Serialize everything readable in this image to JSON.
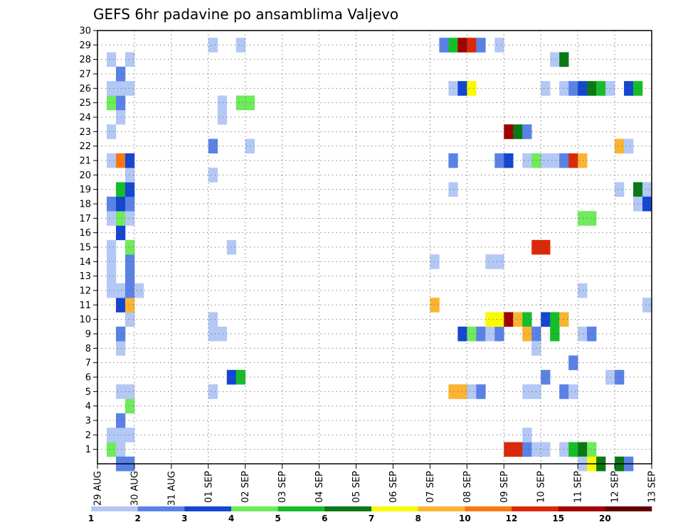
{
  "chart_data": {
    "type": "heatmap",
    "title": "GEFS 6hr padavine po ansamblima Valjevo",
    "y_ticks": [
      "1",
      "2",
      "3",
      "4",
      "5",
      "6",
      "7",
      "8",
      "9",
      "10",
      "11",
      "12",
      "13",
      "14",
      "15",
      "16",
      "17",
      "18",
      "19",
      "20",
      "21",
      "22",
      "23",
      "24",
      "25",
      "26",
      "27",
      "28",
      "29",
      "30"
    ],
    "x_ticks": [
      "29 AUG",
      "30 AUG",
      "31 AUG",
      "01 SEP",
      "02 SEP",
      "03 SEP",
      "04 SEP",
      "05 SEP",
      "06 SEP",
      "07 SEP",
      "08 SEP",
      "09 SEP",
      "10 SEP",
      "11 SEP",
      "12 SEP",
      "13 SEP"
    ],
    "x_steps_per_day": 4,
    "y_range": [
      0,
      30
    ],
    "grid": true,
    "colorbar": {
      "labels": [
        "1",
        "2",
        "3",
        "4",
        "5",
        "6",
        "7",
        "8",
        "10",
        "12",
        "15",
        "20"
      ],
      "colors": [
        "#b4c8f5",
        "#5a82e6",
        "#1446d2",
        "#6eeb5a",
        "#14be28",
        "#0a7814",
        "#fafa00",
        "#fab432",
        "#fa7814",
        "#dc280a",
        "#a00000",
        "#640000"
      ]
    },
    "cells": [
      {
        "x": 0.25,
        "y": 1,
        "c": 3
      },
      {
        "x": 0.5,
        "y": 1,
        "c": 0
      },
      {
        "x": 0.25,
        "y": 2,
        "c": 0
      },
      {
        "x": 0.5,
        "y": 2,
        "c": 0
      },
      {
        "x": 0.75,
        "y": 2,
        "c": 0
      },
      {
        "x": 0.5,
        "y": 3,
        "c": 1
      },
      {
        "x": 0.75,
        "y": 4,
        "c": 3
      },
      {
        "x": 0.5,
        "y": 5,
        "c": 0
      },
      {
        "x": 0.75,
        "y": 5,
        "c": 0
      },
      {
        "x": 0.5,
        "y": 8,
        "c": 0
      },
      {
        "x": 0.5,
        "y": 9,
        "c": 1
      },
      {
        "x": 0.75,
        "y": 10,
        "c": 0
      },
      {
        "x": 0.5,
        "y": 11,
        "c": 2
      },
      {
        "x": 0.75,
        "y": 11,
        "c": 7
      },
      {
        "x": 0.25,
        "y": 12,
        "c": 0
      },
      {
        "x": 0.5,
        "y": 12,
        "c": 0
      },
      {
        "x": 0.75,
        "y": 12,
        "c": 1
      },
      {
        "x": 1.0,
        "y": 12,
        "c": 0
      },
      {
        "x": 0.25,
        "y": 13,
        "c": 0
      },
      {
        "x": 0.75,
        "y": 13,
        "c": 1
      },
      {
        "x": 0.25,
        "y": 14,
        "c": 0
      },
      {
        "x": 0.75,
        "y": 14,
        "c": 1
      },
      {
        "x": 0.25,
        "y": 15,
        "c": 0
      },
      {
        "x": 0.75,
        "y": 15,
        "c": 3
      },
      {
        "x": 0.5,
        "y": 16,
        "c": 2
      },
      {
        "x": 0.25,
        "y": 17,
        "c": 0
      },
      {
        "x": 0.5,
        "y": 17,
        "c": 3
      },
      {
        "x": 0.75,
        "y": 17,
        "c": 0
      },
      {
        "x": 0.25,
        "y": 18,
        "c": 1
      },
      {
        "x": 0.5,
        "y": 18,
        "c": 2
      },
      {
        "x": 0.75,
        "y": 18,
        "c": 1
      },
      {
        "x": 0.5,
        "y": 19,
        "c": 4
      },
      {
        "x": 0.75,
        "y": 19,
        "c": 2
      },
      {
        "x": 0.75,
        "y": 20,
        "c": 0
      },
      {
        "x": 0.25,
        "y": 21,
        "c": 0
      },
      {
        "x": 0.5,
        "y": 21,
        "c": 8
      },
      {
        "x": 0.75,
        "y": 21,
        "c": 2
      },
      {
        "x": 0.25,
        "y": 23,
        "c": 0
      },
      {
        "x": 0.5,
        "y": 24,
        "c": 0
      },
      {
        "x": 0.25,
        "y": 25,
        "c": 3
      },
      {
        "x": 0.5,
        "y": 25,
        "c": 1
      },
      {
        "x": 0.25,
        "y": 26,
        "c": 0
      },
      {
        "x": 0.5,
        "y": 26,
        "c": 0
      },
      {
        "x": 0.75,
        "y": 26,
        "c": 0
      },
      {
        "x": 0.5,
        "y": 27,
        "c": 1
      },
      {
        "x": 0.25,
        "y": 28,
        "c": 0
      },
      {
        "x": 0.75,
        "y": 28,
        "c": 0
      },
      {
        "x": 0.5,
        "y": 0,
        "c": 1
      },
      {
        "x": 0.75,
        "y": 0,
        "c": 1
      },
      {
        "x": 3.0,
        "y": 5,
        "c": 0
      },
      {
        "x": 3.0,
        "y": 9,
        "c": 0
      },
      {
        "x": 3.25,
        "y": 9,
        "c": 0
      },
      {
        "x": 3.0,
        "y": 10,
        "c": 0
      },
      {
        "x": 3.0,
        "y": 20,
        "c": 0
      },
      {
        "x": 3.0,
        "y": 22,
        "c": 1
      },
      {
        "x": 3.0,
        "y": 29,
        "c": 0
      },
      {
        "x": 3.25,
        "y": 24,
        "c": 0
      },
      {
        "x": 3.25,
        "y": 25,
        "c": 0
      },
      {
        "x": 3.5,
        "y": 6,
        "c": 2
      },
      {
        "x": 3.75,
        "y": 6,
        "c": 4
      },
      {
        "x": 3.5,
        "y": 15,
        "c": 0
      },
      {
        "x": 3.75,
        "y": 25,
        "c": 3
      },
      {
        "x": 4.0,
        "y": 25,
        "c": 3
      },
      {
        "x": 4.0,
        "y": 22,
        "c": 0
      },
      {
        "x": 3.75,
        "y": 29,
        "c": 0
      },
      {
        "x": 9.0,
        "y": 11,
        "c": 7
      },
      {
        "x": 9.0,
        "y": 14,
        "c": 0
      },
      {
        "x": 9.25,
        "y": 29,
        "c": 1
      },
      {
        "x": 9.5,
        "y": 29,
        "c": 4
      },
      {
        "x": 9.75,
        "y": 29,
        "c": 10
      },
      {
        "x": 10.0,
        "y": 29,
        "c": 9
      },
      {
        "x": 10.25,
        "y": 29,
        "c": 1
      },
      {
        "x": 10.75,
        "y": 29,
        "c": 0
      },
      {
        "x": 9.5,
        "y": 26,
        "c": 0
      },
      {
        "x": 9.75,
        "y": 26,
        "c": 2
      },
      {
        "x": 10.0,
        "y": 26,
        "c": 6
      },
      {
        "x": 9.5,
        "y": 21,
        "c": 1
      },
      {
        "x": 9.5,
        "y": 19,
        "c": 0
      },
      {
        "x": 9.5,
        "y": 5,
        "c": 7
      },
      {
        "x": 9.75,
        "y": 5,
        "c": 7
      },
      {
        "x": 10.0,
        "y": 5,
        "c": 0
      },
      {
        "x": 10.25,
        "y": 5,
        "c": 1
      },
      {
        "x": 9.75,
        "y": 9,
        "c": 2
      },
      {
        "x": 10.0,
        "y": 9,
        "c": 3
      },
      {
        "x": 10.25,
        "y": 9,
        "c": 1
      },
      {
        "x": 10.5,
        "y": 9,
        "c": 0
      },
      {
        "x": 10.75,
        "y": 9,
        "c": 1
      },
      {
        "x": 10.5,
        "y": 10,
        "c": 6
      },
      {
        "x": 10.75,
        "y": 10,
        "c": 6
      },
      {
        "x": 11.0,
        "y": 10,
        "c": 10
      },
      {
        "x": 11.25,
        "y": 10,
        "c": 7
      },
      {
        "x": 11.5,
        "y": 10,
        "c": 4
      },
      {
        "x": 10.5,
        "y": 14,
        "c": 0
      },
      {
        "x": 10.75,
        "y": 14,
        "c": 0
      },
      {
        "x": 10.75,
        "y": 21,
        "c": 1
      },
      {
        "x": 11.0,
        "y": 21,
        "c": 2
      },
      {
        "x": 11.0,
        "y": 1,
        "c": 9
      },
      {
        "x": 11.25,
        "y": 1,
        "c": 9
      },
      {
        "x": 11.5,
        "y": 1,
        "c": 1
      },
      {
        "x": 11.75,
        "y": 1,
        "c": 0
      },
      {
        "x": 12.0,
        "y": 1,
        "c": 0
      },
      {
        "x": 11.0,
        "y": 23,
        "c": 10
      },
      {
        "x": 11.25,
        "y": 23,
        "c": 5
      },
      {
        "x": 11.5,
        "y": 23,
        "c": 1
      },
      {
        "x": 11.5,
        "y": 2,
        "c": 0
      },
      {
        "x": 11.5,
        "y": 5,
        "c": 0
      },
      {
        "x": 11.75,
        "y": 5,
        "c": 0
      },
      {
        "x": 11.5,
        "y": 9,
        "c": 7
      },
      {
        "x": 11.75,
        "y": 9,
        "c": 1
      },
      {
        "x": 11.75,
        "y": 8,
        "c": 0
      },
      {
        "x": 11.5,
        "y": 21,
        "c": 0
      },
      {
        "x": 11.75,
        "y": 21,
        "c": 3
      },
      {
        "x": 12.0,
        "y": 21,
        "c": 0
      },
      {
        "x": 12.25,
        "y": 21,
        "c": 0
      },
      {
        "x": 12.5,
        "y": 21,
        "c": 1
      },
      {
        "x": 12.75,
        "y": 21,
        "c": 9
      },
      {
        "x": 13.0,
        "y": 21,
        "c": 7
      },
      {
        "x": 11.75,
        "y": 15,
        "c": 9
      },
      {
        "x": 12.0,
        "y": 15,
        "c": 9
      },
      {
        "x": 12.0,
        "y": 10,
        "c": 2
      },
      {
        "x": 12.25,
        "y": 10,
        "c": 4
      },
      {
        "x": 12.5,
        "y": 10,
        "c": 7
      },
      {
        "x": 12.0,
        "y": 6,
        "c": 1
      },
      {
        "x": 12.25,
        "y": 9,
        "c": 4
      },
      {
        "x": 12.25,
        "y": 28,
        "c": 0
      },
      {
        "x": 12.5,
        "y": 28,
        "c": 5
      },
      {
        "x": 12.0,
        "y": 26,
        "c": 0
      },
      {
        "x": 12.5,
        "y": 26,
        "c": 0
      },
      {
        "x": 12.75,
        "y": 26,
        "c": 1
      },
      {
        "x": 13.0,
        "y": 26,
        "c": 2
      },
      {
        "x": 13.25,
        "y": 26,
        "c": 5
      },
      {
        "x": 13.5,
        "y": 26,
        "c": 4
      },
      {
        "x": 13.75,
        "y": 26,
        "c": 0
      },
      {
        "x": 14.25,
        "y": 26,
        "c": 2
      },
      {
        "x": 14.5,
        "y": 26,
        "c": 4
      },
      {
        "x": 12.5,
        "y": 1,
        "c": 0
      },
      {
        "x": 12.75,
        "y": 1,
        "c": 4
      },
      {
        "x": 13.0,
        "y": 1,
        "c": 5
      },
      {
        "x": 13.25,
        "y": 1,
        "c": 3
      },
      {
        "x": 12.5,
        "y": 5,
        "c": 1
      },
      {
        "x": 12.75,
        "y": 5,
        "c": 0
      },
      {
        "x": 12.75,
        "y": 7,
        "c": 1
      },
      {
        "x": 13.0,
        "y": 9,
        "c": 0
      },
      {
        "x": 13.25,
        "y": 9,
        "c": 1
      },
      {
        "x": 13.0,
        "y": 12,
        "c": 0
      },
      {
        "x": 13.0,
        "y": 17,
        "c": 3
      },
      {
        "x": 13.25,
        "y": 17,
        "c": 3
      },
      {
        "x": 13.0,
        "y": 0,
        "c": 0
      },
      {
        "x": 13.25,
        "y": 0,
        "c": 6
      },
      {
        "x": 13.5,
        "y": 0,
        "c": 5
      },
      {
        "x": 13.75,
        "y": 6,
        "c": 0
      },
      {
        "x": 14.0,
        "y": 6,
        "c": 1
      },
      {
        "x": 14.0,
        "y": 19,
        "c": 0
      },
      {
        "x": 14.0,
        "y": 22,
        "c": 7
      },
      {
        "x": 14.25,
        "y": 22,
        "c": 0
      },
      {
        "x": 14.0,
        "y": 0,
        "c": 5
      },
      {
        "x": 14.25,
        "y": 0,
        "c": 1
      },
      {
        "x": 14.5,
        "y": 19,
        "c": 5
      },
      {
        "x": 14.75,
        "y": 19,
        "c": 0
      },
      {
        "x": 14.5,
        "y": 18,
        "c": 0
      },
      {
        "x": 14.75,
        "y": 18,
        "c": 2
      },
      {
        "x": 14.75,
        "y": 11,
        "c": 0
      }
    ]
  }
}
